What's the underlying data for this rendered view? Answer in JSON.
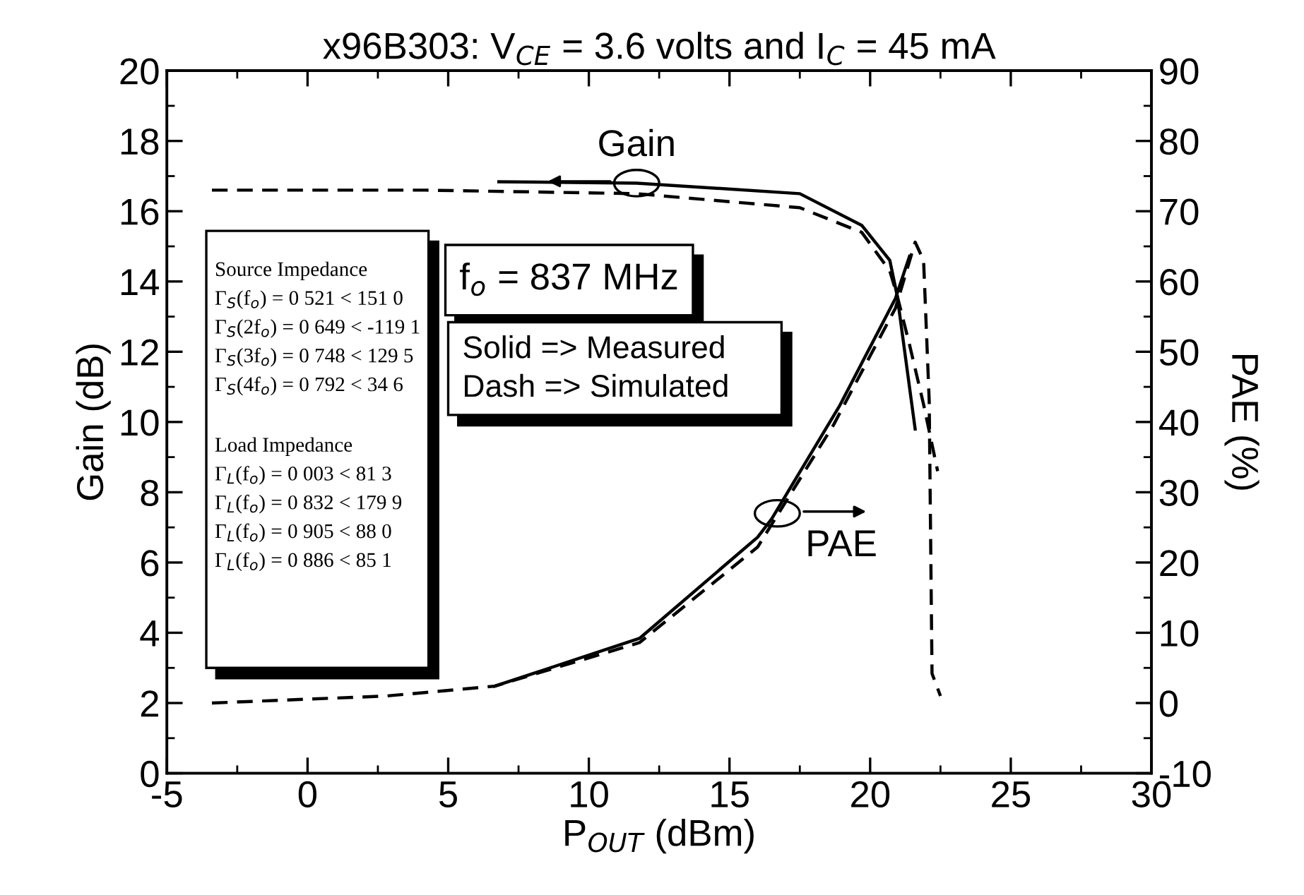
{
  "chart_data": {
    "type": "line",
    "title": "x96B303: V$_{CE}$ = 3.6 volts and I$_{C}$ = 45 mA",
    "xlabel": "P$_{OUT}$ (dBm)",
    "ylabel": "Gain (dB)",
    "y2label": "PAE (%)",
    "xlim": [
      -5,
      30
    ],
    "xticks": [
      -5,
      0,
      5,
      10,
      15,
      20,
      25,
      30
    ],
    "ylim": [
      0,
      20
    ],
    "yticks": [
      0,
      2,
      4,
      6,
      8,
      10,
      12,
      14,
      16,
      18,
      20
    ],
    "y2lim": [
      -10,
      90
    ],
    "y2ticks": [
      -10,
      0,
      10,
      20,
      30,
      40,
      50,
      60,
      70,
      80,
      90
    ],
    "grid": false,
    "legend": false,
    "marker": "none",
    "series": [
      {
        "color": "#000000",
        "line_style": "solid",
        "x": [
          6.8,
          11.7,
          17.5,
          19.7,
          20.7,
          20.96,
          21.6
        ],
        "values": [
          16.84,
          16.8,
          16.5,
          15.6,
          14.6,
          13.6,
          9.8
        ]
      },
      {
        "color": "#000000",
        "line_style": "dashed",
        "x": [
          -3.4,
          4.2,
          11.7,
          17.5,
          19.7,
          20.7,
          20.96,
          21.4,
          21.9,
          22.4
        ],
        "values": [
          16.6,
          16.6,
          16.5,
          16.1,
          15.4,
          14.3,
          13.6,
          12.2,
          10.5,
          8.6
        ]
      },
      {
        "color": "#000000",
        "line_style": "solid",
        "axis": "y2",
        "x": [
          6.65,
          11.8,
          16.0,
          16.5,
          18.9,
          20.9,
          21.4
        ],
        "values": [
          2.4,
          9.2,
          23.6,
          26.2,
          42.2,
          57.6,
          63.6
        ]
      },
      {
        "color": "#000000",
        "line_style": "dashed",
        "axis": "y2",
        "x": [
          -3.4,
          2.8,
          6.65,
          11.8,
          16.0,
          18.7,
          20.9,
          21.6,
          21.9,
          22.1,
          22.2,
          22.5
        ],
        "values": [
          0,
          1.0,
          2.4,
          8.6,
          22.2,
          39.6,
          56.2,
          65.6,
          63,
          43,
          4.2,
          1
        ]
      }
    ],
    "annotations": [
      {
        "text": "Gain",
        "x": 11.7,
        "y": 16.8
      },
      {
        "text": "PAE",
        "x": 16.7,
        "y": 7.4
      },
      "Source Impedance",
      "Γ$_{S}$(f$_{o}$) = 0 521 < 151 0",
      "Γ$_{S}$(2f$_{o}$) = 0 649 < -119 1",
      "Γ$_{S}$(3f$_{o}$) = 0 748 < 129 5",
      "Γ$_{S}$(4f$_{o}$) = 0 792 < 34 6",
      "Load Impedance",
      "Γ$_{L}$(f$_{o}$) = 0 003 < 81 3",
      "Γ$_{L}$(f$_{o}$) = 0 832 < 179 9",
      "Γ$_{L}$(f$_{o}$) = 0 905 < 88 0",
      "Γ$_{L}$(f$_{o}$) = 0 886 < 85 1",
      "f$_{o}$ = 837 MHz",
      "Solid => Measured",
      "Dash => Simulated"
    ]
  }
}
